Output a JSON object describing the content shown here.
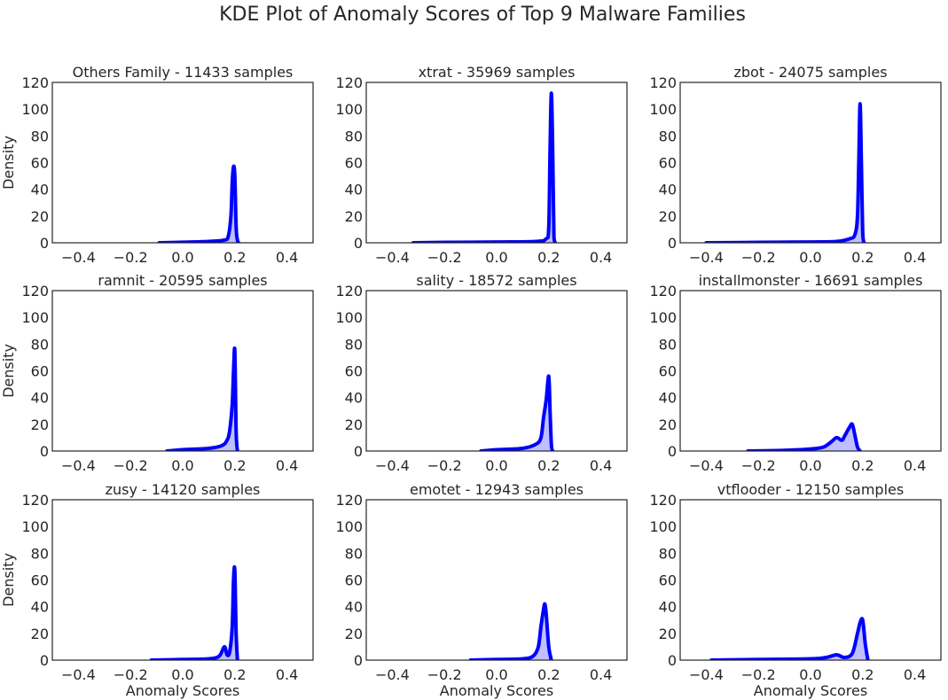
{
  "figure": {
    "title": "KDE Plot of Anomaly Scores of Top 9 Malware Families"
  },
  "style": {
    "line_color": "#0000ff",
    "fill_color": "#0000ff",
    "fill_opacity": 0.25,
    "text_color": "#262626"
  },
  "chart_data": [
    {
      "type": "area",
      "title": "Others Family - 11433 samples",
      "xlabel": "",
      "ylabel": "Density",
      "xlim": [
        -0.5,
        0.5
      ],
      "ylim": [
        0,
        120
      ],
      "xticks": [
        -0.4,
        -0.2,
        0.0,
        0.2,
        0.4
      ],
      "yticks": [
        0,
        20,
        40,
        60,
        80,
        100,
        120
      ],
      "x": [
        -0.09,
        0.0,
        0.1,
        0.16,
        0.175,
        0.185,
        0.19,
        0.195,
        0.2,
        0.205,
        0.21,
        0.215
      ],
      "y": [
        0,
        0.4,
        1,
        2,
        5,
        20,
        45,
        57,
        50,
        12,
        2,
        0
      ]
    },
    {
      "type": "area",
      "title": "xtrat - 35969 samples",
      "xlabel": "",
      "ylabel": "",
      "xlim": [
        -0.5,
        0.5
      ],
      "ylim": [
        0,
        120
      ],
      "xticks": [
        -0.4,
        -0.2,
        0.0,
        0.2,
        0.4
      ],
      "yticks": [
        0,
        20,
        40,
        60,
        80,
        100,
        120
      ],
      "x": [
        -0.32,
        -0.2,
        0.0,
        0.15,
        0.19,
        0.2,
        0.205,
        0.21,
        0.215,
        0.22,
        0.225
      ],
      "y": [
        0,
        0.3,
        0.6,
        1,
        3,
        12,
        70,
        112,
        70,
        4,
        0
      ]
    },
    {
      "type": "area",
      "title": "zbot - 24075 samples",
      "xlabel": "",
      "ylabel": "",
      "xlim": [
        -0.5,
        0.5
      ],
      "ylim": [
        0,
        120
      ],
      "xticks": [
        -0.4,
        -0.2,
        0.0,
        0.2,
        0.4
      ],
      "yticks": [
        0,
        20,
        40,
        60,
        80,
        100,
        120
      ],
      "x": [
        -0.4,
        -0.2,
        0.0,
        0.1,
        0.15,
        0.17,
        0.18,
        0.185,
        0.19,
        0.195,
        0.2,
        0.205
      ],
      "y": [
        0,
        0.3,
        0.6,
        1,
        3,
        6,
        20,
        60,
        104,
        60,
        8,
        0
      ]
    },
    {
      "type": "area",
      "title": "ramnit - 20595 samples",
      "xlabel": "",
      "ylabel": "Density",
      "xlim": [
        -0.5,
        0.5
      ],
      "ylim": [
        0,
        120
      ],
      "xticks": [
        -0.4,
        -0.2,
        0.0,
        0.2,
        0.4
      ],
      "yticks": [
        0,
        20,
        40,
        60,
        80,
        100,
        120
      ],
      "x": [
        -0.06,
        0.0,
        0.1,
        0.15,
        0.17,
        0.18,
        0.19,
        0.195,
        0.2,
        0.205,
        0.21
      ],
      "y": [
        0,
        1,
        2,
        4,
        8,
        15,
        35,
        60,
        75,
        15,
        0
      ]
    },
    {
      "type": "area",
      "title": "sality - 18572 samples",
      "xlabel": "",
      "ylabel": "",
      "xlim": [
        -0.5,
        0.5
      ],
      "ylim": [
        0,
        120
      ],
      "xticks": [
        -0.4,
        -0.2,
        0.0,
        0.2,
        0.4
      ],
      "yticks": [
        0,
        20,
        40,
        60,
        80,
        100,
        120
      ],
      "x": [
        -0.06,
        0.0,
        0.1,
        0.15,
        0.17,
        0.18,
        0.19,
        0.2,
        0.205,
        0.21,
        0.215
      ],
      "y": [
        0,
        1,
        2,
        5,
        10,
        25,
        38,
        56,
        30,
        5,
        0
      ]
    },
    {
      "type": "area",
      "title": "installmonster - 16691 samples",
      "xlabel": "",
      "ylabel": "",
      "xlim": [
        -0.5,
        0.5
      ],
      "ylim": [
        0,
        120
      ],
      "xticks": [
        -0.4,
        -0.2,
        0.0,
        0.2,
        0.4
      ],
      "yticks": [
        0,
        20,
        40,
        60,
        80,
        100,
        120
      ],
      "x": [
        -0.24,
        -0.1,
        0.0,
        0.05,
        0.08,
        0.1,
        0.12,
        0.13,
        0.15,
        0.16,
        0.17,
        0.18,
        0.19
      ],
      "y": [
        0,
        0.5,
        1.5,
        3,
        7,
        10,
        8,
        11,
        18,
        20,
        12,
        3,
        0
      ]
    },
    {
      "type": "area",
      "title": "zusy - 14120 samples",
      "xlabel": "Anomaly Scores",
      "ylabel": "Density",
      "xlim": [
        -0.5,
        0.5
      ],
      "ylim": [
        0,
        120
      ],
      "xticks": [
        -0.4,
        -0.2,
        0.0,
        0.2,
        0.4
      ],
      "yticks": [
        0,
        20,
        40,
        60,
        80,
        100,
        120
      ],
      "x": [
        -0.12,
        0.0,
        0.1,
        0.14,
        0.16,
        0.17,
        0.18,
        0.19,
        0.195,
        0.2,
        0.205,
        0.21
      ],
      "y": [
        0,
        0.5,
        1,
        3,
        10,
        4,
        6,
        25,
        60,
        67,
        20,
        0
      ]
    },
    {
      "type": "area",
      "title": "emotet - 12943 samples",
      "xlabel": "Anomaly Scores",
      "ylabel": "",
      "xlim": [
        -0.5,
        0.5
      ],
      "ylim": [
        0,
        120
      ],
      "xticks": [
        -0.4,
        -0.2,
        0.0,
        0.2,
        0.4
      ],
      "yticks": [
        0,
        20,
        40,
        60,
        80,
        100,
        120
      ],
      "x": [
        -0.1,
        0.0,
        0.1,
        0.14,
        0.16,
        0.17,
        0.18,
        0.185,
        0.19,
        0.2,
        0.21
      ],
      "y": [
        0,
        0.5,
        1,
        3,
        10,
        25,
        38,
        42,
        35,
        10,
        0
      ]
    },
    {
      "type": "area",
      "title": "vtflooder - 12150 samples",
      "xlabel": "Anomaly Scores",
      "ylabel": "",
      "xlim": [
        -0.5,
        0.5
      ],
      "ylim": [
        0,
        120
      ],
      "xticks": [
        -0.4,
        -0.2,
        0.0,
        0.2,
        0.4
      ],
      "yticks": [
        0,
        20,
        40,
        60,
        80,
        100,
        120
      ],
      "x": [
        -0.38,
        -0.2,
        0.0,
        0.06,
        0.1,
        0.13,
        0.16,
        0.18,
        0.19,
        0.2,
        0.21,
        0.22
      ],
      "y": [
        0,
        0.5,
        1,
        2,
        4,
        2,
        5,
        20,
        28,
        30,
        12,
        0
      ]
    }
  ]
}
